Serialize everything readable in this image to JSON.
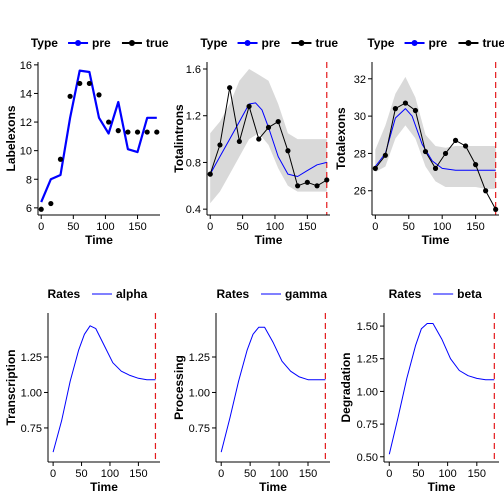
{
  "chart_data": [
    {
      "type": "line",
      "legend": {
        "title": "Type",
        "entries": [
          {
            "name": "pre",
            "color": "#0000ff",
            "marker": "point"
          },
          {
            "name": "true",
            "color": "#000000",
            "marker": "point"
          }
        ],
        "placement": "top"
      },
      "xlabel": "Time",
      "ylabel": "Labelexons",
      "xlim": [
        -5,
        185
      ],
      "ylim": [
        5.5,
        16.2
      ],
      "xticks": [
        0,
        50,
        100,
        150
      ],
      "yticks": [
        6,
        8,
        10,
        12,
        14,
        16
      ],
      "grid": false,
      "vline": null,
      "ribbon": null,
      "series": [
        {
          "name": "pre",
          "color": "#0000ff",
          "width": 2.2,
          "points": false,
          "x": [
            0,
            15,
            30,
            45,
            60,
            75,
            90,
            105,
            120,
            135,
            150,
            165,
            180
          ],
          "y": [
            6.4,
            8.0,
            8.3,
            12.3,
            15.6,
            15.5,
            12.3,
            11.2,
            13.4,
            10.1,
            9.9,
            12.3,
            12.3
          ]
        },
        {
          "name": "true",
          "color": "#000000",
          "width": 0,
          "points": true,
          "x": [
            0,
            15,
            30,
            45,
            60,
            75,
            90,
            105,
            120,
            135,
            150,
            165,
            180
          ],
          "y": [
            5.9,
            6.3,
            9.4,
            13.8,
            14.7,
            14.7,
            13.9,
            12.0,
            11.4,
            11.3,
            11.3,
            11.3,
            11.3
          ]
        }
      ]
    },
    {
      "type": "line",
      "legend": {
        "title": "Type",
        "entries": [
          {
            "name": "pre",
            "color": "#0000ff",
            "marker": "point"
          },
          {
            "name": "true",
            "color": "#000000",
            "marker": "point"
          }
        ],
        "placement": "top"
      },
      "xlabel": "Time",
      "ylabel": "Totalintrons",
      "xlim": [
        -5,
        185
      ],
      "ylim": [
        0.35,
        1.66
      ],
      "xticks": [
        0,
        50,
        100,
        150
      ],
      "yticks": [
        0.4,
        0.8,
        1.2,
        1.6
      ],
      "grid": false,
      "vline": 180,
      "ribbon": {
        "color": "#d9d9d9",
        "x": [
          0,
          15,
          30,
          45,
          60,
          75,
          90,
          105,
          120,
          135,
          150,
          165,
          180
        ],
        "lower": [
          0.45,
          0.55,
          0.7,
          0.85,
          1.0,
          1.05,
          0.95,
          0.75,
          0.6,
          0.55,
          0.55,
          0.55,
          0.55
        ],
        "upper": [
          1.05,
          1.15,
          1.3,
          1.5,
          1.6,
          1.55,
          1.5,
          1.3,
          1.05,
          1.0,
          1.0,
          1.0,
          1.0
        ]
      },
      "series": [
        {
          "name": "pre",
          "color": "#0000ff",
          "width": 1,
          "points": false,
          "x": [
            0,
            15,
            30,
            45,
            60,
            70,
            80,
            90,
            105,
            120,
            135,
            150,
            165,
            180
          ],
          "y": [
            0.7,
            0.85,
            1.0,
            1.15,
            1.3,
            1.31,
            1.25,
            1.1,
            0.85,
            0.7,
            0.68,
            0.73,
            0.78,
            0.8
          ]
        },
        {
          "name": "true",
          "color": "#000000",
          "width": 1,
          "points": true,
          "x": [
            0,
            15,
            30,
            45,
            60,
            75,
            90,
            105,
            120,
            135,
            150,
            165,
            180
          ],
          "y": [
            0.7,
            0.95,
            1.44,
            0.98,
            1.28,
            1.0,
            1.1,
            1.15,
            0.9,
            0.6,
            0.63,
            0.6,
            0.65
          ]
        }
      ]
    },
    {
      "type": "line",
      "legend": {
        "title": "Type",
        "entries": [
          {
            "name": "pre",
            "color": "#0000ff",
            "marker": "point"
          },
          {
            "name": "true",
            "color": "#000000",
            "marker": "point"
          }
        ],
        "placement": "top"
      },
      "xlabel": "Time",
      "ylabel": "Totalexons",
      "xlim": [
        -5,
        185
      ],
      "ylim": [
        24.7,
        32.9
      ],
      "xticks": [
        0,
        50,
        100,
        150
      ],
      "yticks": [
        26,
        28,
        30,
        32
      ],
      "grid": false,
      "vline": 180,
      "ribbon": {
        "color": "#d9d9d9",
        "x": [
          0,
          15,
          30,
          45,
          60,
          75,
          90,
          105,
          120,
          135,
          150,
          165,
          180
        ],
        "lower": [
          27.0,
          27.3,
          28.8,
          29.5,
          28.8,
          27.3,
          26.5,
          26.2,
          26.2,
          26.2,
          26.2,
          26.1,
          26.1
        ],
        "upper": [
          28.2,
          29.5,
          31.2,
          32.1,
          31.0,
          29.0,
          28.4,
          28.3,
          28.4,
          28.4,
          28.4,
          28.4,
          28.4
        ]
      },
      "series": [
        {
          "name": "pre",
          "color": "#0000ff",
          "width": 1,
          "points": false,
          "x": [
            0,
            15,
            30,
            45,
            55,
            70,
            85,
            100,
            120,
            140,
            160,
            180
          ],
          "y": [
            27.3,
            28.0,
            29.9,
            30.4,
            30.0,
            28.5,
            27.6,
            27.2,
            27.1,
            27.1,
            27.1,
            27.1
          ]
        },
        {
          "name": "true",
          "color": "#000000",
          "width": 1,
          "points": true,
          "x": [
            0,
            15,
            30,
            45,
            60,
            75,
            90,
            105,
            120,
            135,
            150,
            165,
            180
          ],
          "y": [
            27.2,
            27.9,
            30.4,
            30.7,
            30.3,
            28.1,
            27.2,
            28.0,
            28.7,
            28.4,
            27.4,
            26.0,
            25.0
          ]
        }
      ]
    },
    {
      "type": "line",
      "legend": {
        "title": "Rates",
        "entries": [
          {
            "name": "alpha",
            "color": "#0000ff",
            "marker": "line"
          }
        ],
        "placement": "top"
      },
      "xlabel": "Time",
      "ylabel": "Transcription",
      "xlim": [
        -9,
        188
      ],
      "ylim": [
        0.51,
        1.56
      ],
      "xticks": [
        0,
        50,
        100,
        150
      ],
      "yticks": [
        0.75,
        1.0,
        1.25
      ],
      "grid": false,
      "vline": 180,
      "ribbon": null,
      "series": [
        {
          "name": "alpha",
          "color": "#0000ff",
          "width": 1,
          "points": false,
          "x": [
            0,
            15,
            30,
            45,
            55,
            65,
            75,
            90,
            105,
            120,
            135,
            150,
            165,
            180
          ],
          "y": [
            0.58,
            0.8,
            1.08,
            1.3,
            1.41,
            1.47,
            1.45,
            1.33,
            1.21,
            1.15,
            1.12,
            1.1,
            1.09,
            1.09
          ]
        }
      ]
    },
    {
      "type": "line",
      "legend": {
        "title": "Rates",
        "entries": [
          {
            "name": "gamma",
            "color": "#0000ff",
            "marker": "line"
          }
        ],
        "placement": "top"
      },
      "xlabel": "Time",
      "ylabel": "Processing",
      "xlim": [
        -9,
        188
      ],
      "ylim": [
        0.51,
        1.56
      ],
      "xticks": [
        0,
        50,
        100,
        150
      ],
      "yticks": [
        0.75,
        1.0,
        1.25
      ],
      "grid": false,
      "vline": 180,
      "ribbon": null,
      "series": [
        {
          "name": "gamma",
          "color": "#0000ff",
          "width": 1,
          "points": false,
          "x": [
            0,
            15,
            30,
            45,
            55,
            65,
            75,
            90,
            105,
            120,
            135,
            150,
            165,
            180
          ],
          "y": [
            0.58,
            0.82,
            1.08,
            1.3,
            1.41,
            1.46,
            1.46,
            1.35,
            1.22,
            1.15,
            1.11,
            1.09,
            1.09,
            1.09
          ]
        }
      ]
    },
    {
      "type": "line",
      "legend": {
        "title": "Rates",
        "entries": [
          {
            "name": "beta",
            "color": "#0000ff",
            "marker": "line"
          }
        ],
        "placement": "top"
      },
      "xlabel": "Time",
      "ylabel": "Degradation",
      "xlim": [
        -9,
        188
      ],
      "ylim": [
        0.46,
        1.6
      ],
      "xticks": [
        0,
        50,
        100,
        150
      ],
      "yticks": [
        0.5,
        0.75,
        1.0,
        1.25,
        1.5
      ],
      "grid": false,
      "vline": 180,
      "ribbon": null,
      "series": [
        {
          "name": "beta",
          "color": "#0000ff",
          "width": 1,
          "points": false,
          "x": [
            0,
            15,
            30,
            45,
            55,
            65,
            75,
            90,
            105,
            120,
            135,
            150,
            165,
            180
          ],
          "y": [
            0.52,
            0.8,
            1.1,
            1.35,
            1.48,
            1.52,
            1.52,
            1.4,
            1.25,
            1.16,
            1.12,
            1.1,
            1.09,
            1.09
          ]
        }
      ]
    }
  ]
}
